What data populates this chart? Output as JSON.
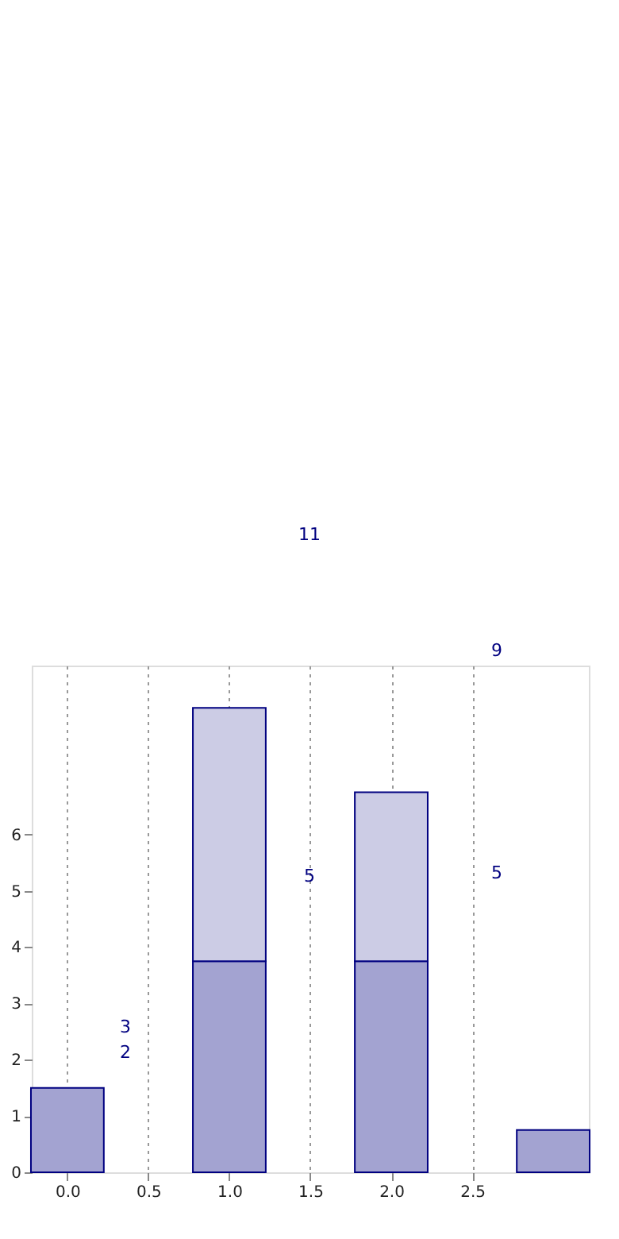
{
  "chart_data": {
    "type": "bar",
    "stacked": true,
    "x": [
      0,
      1,
      2,
      3
    ],
    "series": [
      {
        "color": "#a3a3d1",
        "values": [
          1.5,
          3.75,
          3.75,
          0.75
        ]
      },
      {
        "color": "#cccce5",
        "values": [
          null,
          4.5,
          3.0,
          null
        ]
      }
    ],
    "xlim": [
      -0.22,
      3.22
    ],
    "xticks": [
      {
        "value": 0,
        "label": "0.0"
      },
      {
        "value": 0.5,
        "label": "0.5"
      },
      {
        "value": 1,
        "label": "1.0"
      },
      {
        "value": 1.5,
        "label": "1.5"
      },
      {
        "value": 2,
        "label": "2.0"
      },
      {
        "value": 2.5,
        "label": "2.5"
      }
    ],
    "ylim": [
      0,
      9
    ],
    "yticks": [
      0,
      1,
      2,
      3,
      4,
      5,
      6
    ],
    "grid": "x",
    "annotations": [
      "11",
      "9",
      "5",
      "5",
      "2",
      "3"
    ]
  }
}
